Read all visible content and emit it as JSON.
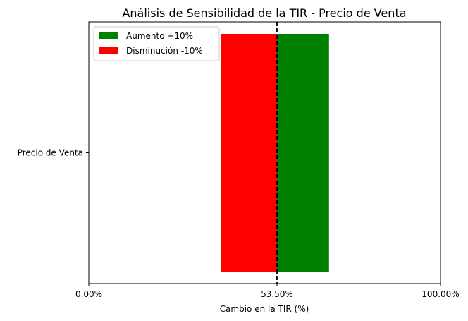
{
  "chart_data": {
    "type": "bar",
    "orientation": "horizontal",
    "title": "Análisis de Sensibilidad de la TIR - Precio de Venta",
    "xlabel": "Cambio en la TIR (%)",
    "ylabel": "",
    "categories": [
      "Precio de Venta"
    ],
    "baseline": 53.5,
    "xlim": [
      0,
      100
    ],
    "x_ticks": [
      {
        "value": 0,
        "label": "0.00%"
      },
      {
        "value": 53.5,
        "label": "53.50%"
      },
      {
        "value": 100,
        "label": "100.00%"
      }
    ],
    "series": [
      {
        "name": "Aumento +10%",
        "color": "#008000",
        "start": 53.5,
        "end": 68.3
      },
      {
        "name": "Disminución -10%",
        "color": "#ff0000",
        "start": 37.5,
        "end": 53.5
      }
    ],
    "reference_line": {
      "value": 53.5,
      "style": "dashed",
      "color": "#000000"
    },
    "grid": false,
    "legend_position": "upper-left"
  }
}
